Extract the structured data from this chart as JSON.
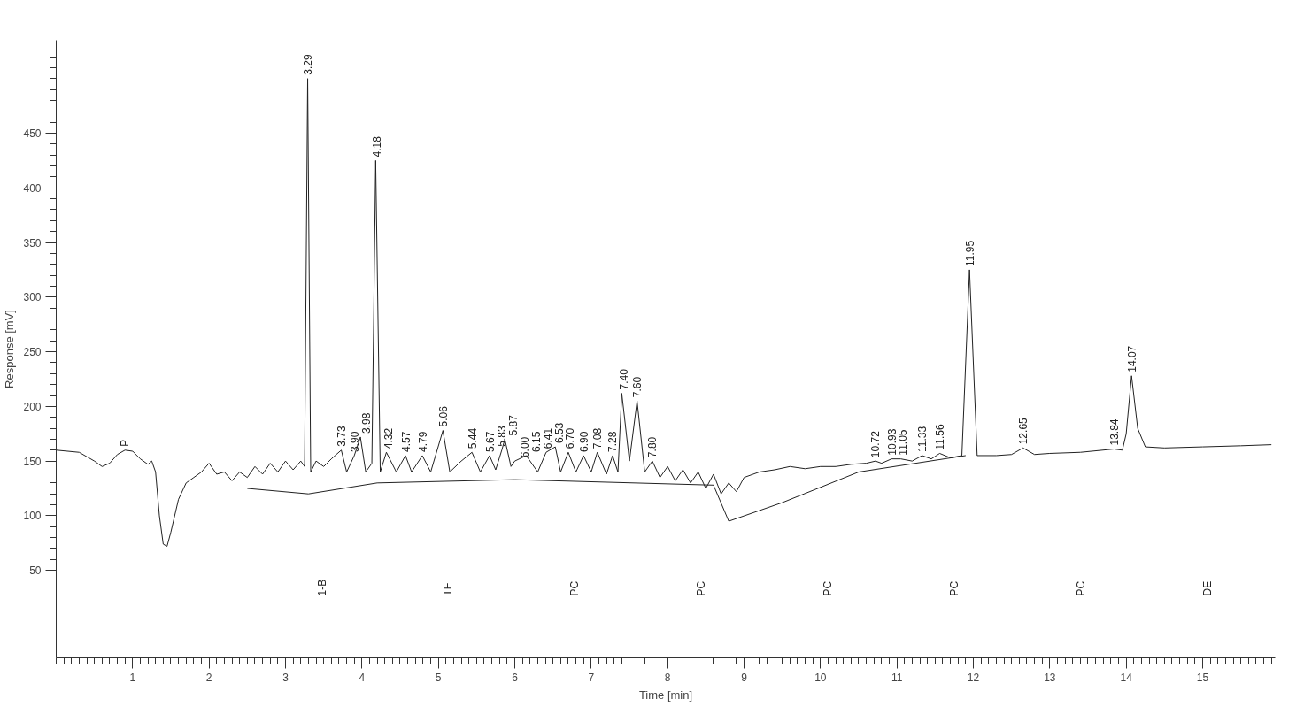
{
  "chart_data": {
    "type": "line",
    "xlabel": "Time [min]",
    "ylabel": "Response [mV]",
    "xlim": [
      0,
      15.95
    ],
    "xticks": [
      1,
      2,
      3,
      4,
      5,
      6,
      7,
      8,
      9,
      10,
      11,
      12,
      13,
      14,
      15
    ],
    "ylim": [
      -30,
      535
    ],
    "yticks": [
      50,
      100,
      150,
      200,
      250,
      300,
      350,
      400,
      450
    ],
    "grid": false,
    "marker": "none",
    "line_style": "solid",
    "series": [
      {
        "color": "#222222",
        "x": [
          0,
          0.3,
          0.5,
          0.6,
          0.7,
          0.8,
          0.9,
          1.0,
          1.1,
          1.2,
          1.25,
          1.3,
          1.35,
          1.4,
          1.45,
          1.5,
          1.6,
          1.7,
          1.8,
          1.9,
          2.0,
          2.1,
          2.2,
          2.3,
          2.4,
          2.5,
          2.6,
          2.7,
          2.8,
          2.9,
          3.0,
          3.1,
          3.2,
          3.25,
          3.29,
          3.33,
          3.4,
          3.5,
          3.6,
          3.73,
          3.8,
          3.9,
          3.98,
          4.05,
          4.13,
          4.18,
          4.24,
          4.32,
          4.45,
          4.57,
          4.65,
          4.79,
          4.9,
          5.06,
          5.15,
          5.3,
          5.44,
          5.55,
          5.67,
          5.75,
          5.83,
          5.87,
          5.95,
          6.0,
          6.15,
          6.3,
          6.41,
          6.53,
          6.6,
          6.7,
          6.8,
          6.9,
          7.0,
          7.08,
          7.2,
          7.28,
          7.35,
          7.4,
          7.5,
          7.6,
          7.7,
          7.8,
          7.9,
          8.0,
          8.1,
          8.2,
          8.3,
          8.4,
          8.5,
          8.6,
          8.7,
          8.8,
          8.9,
          9.0,
          9.2,
          9.4,
          9.6,
          9.8,
          10.0,
          10.2,
          10.4,
          10.6,
          10.72,
          10.8,
          10.93,
          11.05,
          11.2,
          11.33,
          11.45,
          11.56,
          11.7,
          11.85,
          11.95,
          12.05,
          12.3,
          12.5,
          12.65,
          12.8,
          13.0,
          13.4,
          13.84,
          13.95,
          14.0,
          14.07,
          14.15,
          14.25,
          14.5,
          15.0,
          15.5,
          15.9
        ],
        "values": [
          160,
          158,
          150,
          145,
          148,
          156,
          160,
          159,
          152,
          147,
          150,
          140,
          100,
          74,
          72,
          85,
          115,
          130,
          135,
          140,
          148,
          138,
          140,
          132,
          140,
          135,
          145,
          138,
          148,
          140,
          150,
          142,
          150,
          145,
          500,
          140,
          150,
          145,
          152,
          160,
          140,
          155,
          172,
          140,
          148,
          425,
          140,
          158,
          140,
          155,
          140,
          155,
          140,
          178,
          140,
          150,
          158,
          140,
          155,
          142,
          160,
          170,
          145,
          150,
          155,
          140,
          158,
          163,
          140,
          158,
          140,
          155,
          140,
          158,
          138,
          155,
          140,
          212,
          150,
          205,
          140,
          150,
          135,
          145,
          132,
          142,
          130,
          140,
          125,
          138,
          120,
          130,
          122,
          135,
          140,
          142,
          145,
          143,
          145,
          145,
          147,
          148,
          150,
          148,
          152,
          152,
          150,
          155,
          152,
          157,
          153,
          155,
          325,
          155,
          155,
          156,
          162,
          156,
          157,
          158,
          161,
          160,
          175,
          228,
          180,
          163,
          162,
          163,
          164,
          165
        ]
      },
      {
        "color": "#222222",
        "x": [
          2.5,
          3.3,
          4.2,
          6.0,
          8.6,
          8.8,
          9.5,
          10.5,
          11.9
        ],
        "values": [
          125,
          120,
          130,
          133,
          128,
          95,
          112,
          140,
          155
        ]
      }
    ],
    "annotations": [
      {
        "text": "P",
        "x": 0.9,
        "y": 160
      },
      {
        "text": "3.29",
        "x": 3.29,
        "y": 500
      },
      {
        "text": "3.73",
        "x": 3.73,
        "y": 160
      },
      {
        "text": "3.90",
        "x": 3.9,
        "y": 155
      },
      {
        "text": "3.98",
        "x": 3.98,
        "y": 172
      },
      {
        "text": "4.18",
        "x": 4.18,
        "y": 425
      },
      {
        "text": "4.32",
        "x": 4.32,
        "y": 158
      },
      {
        "text": "4.57",
        "x": 4.57,
        "y": 155
      },
      {
        "text": "4.79",
        "x": 4.79,
        "y": 155
      },
      {
        "text": "5.06",
        "x": 5.06,
        "y": 178
      },
      {
        "text": "5.44",
        "x": 5.44,
        "y": 158
      },
      {
        "text": "5.67",
        "x": 5.67,
        "y": 155
      },
      {
        "text": "5.83",
        "x": 5.83,
        "y": 160
      },
      {
        "text": "5.87",
        "x": 5.87,
        "y": 170
      },
      {
        "text": "6.00",
        "x": 6.0,
        "y": 150
      },
      {
        "text": "6.15",
        "x": 6.15,
        "y": 155
      },
      {
        "text": "6.41",
        "x": 6.41,
        "y": 158
      },
      {
        "text": "6.53",
        "x": 6.53,
        "y": 163
      },
      {
        "text": "6.70",
        "x": 6.7,
        "y": 158
      },
      {
        "text": "6.90",
        "x": 6.9,
        "y": 155
      },
      {
        "text": "7.08",
        "x": 7.08,
        "y": 158
      },
      {
        "text": "7.28",
        "x": 7.28,
        "y": 155
      },
      {
        "text": "7.40",
        "x": 7.4,
        "y": 212
      },
      {
        "text": "7.60",
        "x": 7.6,
        "y": 205
      },
      {
        "text": "7.80",
        "x": 7.8,
        "y": 150
      },
      {
        "text": "10.72",
        "x": 10.72,
        "y": 150
      },
      {
        "text": "10.93",
        "x": 10.93,
        "y": 152
      },
      {
        "text": "11.05",
        "x": 11.05,
        "y": 152
      },
      {
        "text": "11.33",
        "x": 11.33,
        "y": 155
      },
      {
        "text": "11.56",
        "x": 11.56,
        "y": 157
      },
      {
        "text": "11.95",
        "x": 11.95,
        "y": 325
      },
      {
        "text": "12.65",
        "x": 12.65,
        "y": 162
      },
      {
        "text": "13.84",
        "x": 13.84,
        "y": 161
      },
      {
        "text": "14.07",
        "x": 14.07,
        "y": 228
      },
      "1-B",
      "TE",
      "PC",
      "PC",
      "PC",
      "PC",
      "PC",
      "DE"
    ]
  }
}
